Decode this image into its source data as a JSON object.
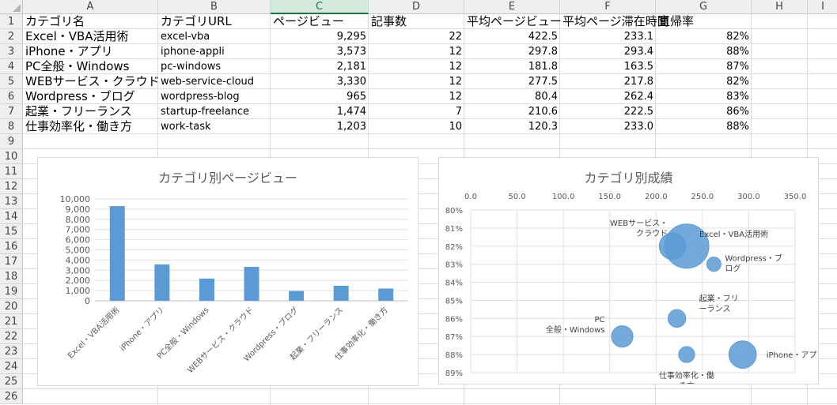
{
  "columns": [
    "A",
    "B",
    "C",
    "D",
    "E",
    "F",
    "G",
    "H",
    "I"
  ],
  "rows": [
    "1",
    "2",
    "3",
    "4",
    "5",
    "6",
    "7",
    "8",
    "9",
    "10",
    "11",
    "12",
    "13",
    "14",
    "15",
    "16",
    "17",
    "18",
    "19",
    "20",
    "21",
    "22",
    "23",
    "24",
    "25",
    "26"
  ],
  "headers": [
    "カテゴリ名",
    "カテゴリURL",
    "ページビュー",
    "記事数",
    "平均ページビュー",
    "平均ページ滞在時間",
    "直帰率"
  ],
  "table": [
    [
      "Excel・VBA活用術",
      "excel-vba",
      "9,295",
      "22",
      "422.5",
      "233.1",
      "82%"
    ],
    [
      "iPhone・アプリ",
      "iphone-appli",
      "3,573",
      "12",
      "297.8",
      "293.4",
      "88%"
    ],
    [
      "PC全般・Windows",
      "pc-windows",
      "2,181",
      "12",
      "181.8",
      "163.5",
      "87%"
    ],
    [
      "WEBサービス・クラウド",
      "web-service-cloud",
      "3,330",
      "12",
      "277.5",
      "217.8",
      "82%"
    ],
    [
      "Wordpress・ブログ",
      "wordpress-blog",
      "965",
      "12",
      "80.4",
      "262.4",
      "83%"
    ],
    [
      "起業・フリーランス",
      "startup-freelance",
      "1,474",
      "7",
      "210.6",
      "222.5",
      "86%"
    ],
    [
      "仕事効率化・働き方",
      "work-task",
      "1,203",
      "10",
      "120.3",
      "233.0",
      "88%"
    ]
  ],
  "chart_data": [
    {
      "type": "bar",
      "title": "カテゴリ別ページビュー",
      "categories": [
        "Excel・VBA活用術",
        "iPhone・アプリ",
        "PC全般・Windows",
        "WEBサービス・クラウド",
        "Wordpress・ブログ",
        "起業・フリーランス",
        "仕事効率化・働き方"
      ],
      "values": [
        9295,
        3573,
        2181,
        3330,
        965,
        1474,
        1203
      ],
      "ylim": [
        0,
        10000
      ],
      "yticks": [
        "0",
        "1,000",
        "2,000",
        "3,000",
        "4,000",
        "5,000",
        "6,000",
        "7,000",
        "8,000",
        "9,000",
        "10,000"
      ],
      "color": "#5b9bd5",
      "grid": true
    },
    {
      "type": "scatter",
      "title": "カテゴリ別成績",
      "points": [
        {
          "label": "Excel・VBA活用術",
          "x": 233.1,
          "y": 82,
          "size": 9295
        },
        {
          "label": "iPhone・アプリ",
          "x": 293.4,
          "y": 88,
          "size": 3573
        },
        {
          "label": "PC全般・Windows",
          "x": 163.5,
          "y": 87,
          "size": 2181
        },
        {
          "label": "WEBサービス・クラウド",
          "x": 217.8,
          "y": 82,
          "size": 3330
        },
        {
          "label": "Wordpress・ブログ",
          "x": 262.4,
          "y": 83,
          "size": 965
        },
        {
          "label": "起業・フリーランス",
          "x": 222.5,
          "y": 86,
          "size": 1474
        },
        {
          "label": "仕事効率化・働き方",
          "x": 233.0,
          "y": 88,
          "size": 1203
        }
      ],
      "xlim": [
        0,
        350
      ],
      "xticks": [
        "0.0",
        "50.0",
        "100.0",
        "150.0",
        "200.0",
        "250.0",
        "300.0",
        "350.0"
      ],
      "ylim": [
        80,
        89
      ],
      "yticks": [
        "80%",
        "81%",
        "82%",
        "83%",
        "84%",
        "85%",
        "86%",
        "87%",
        "88%",
        "89%"
      ],
      "color": "#5b9bd5",
      "grid": true
    }
  ]
}
